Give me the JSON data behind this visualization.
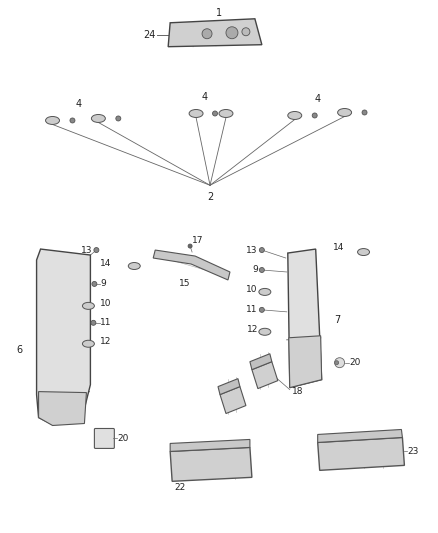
{
  "bg_color": "#ffffff",
  "line_color": "#666666",
  "text_color": "#222222",
  "figsize": [
    4.38,
    5.33
  ],
  "dpi": 100
}
